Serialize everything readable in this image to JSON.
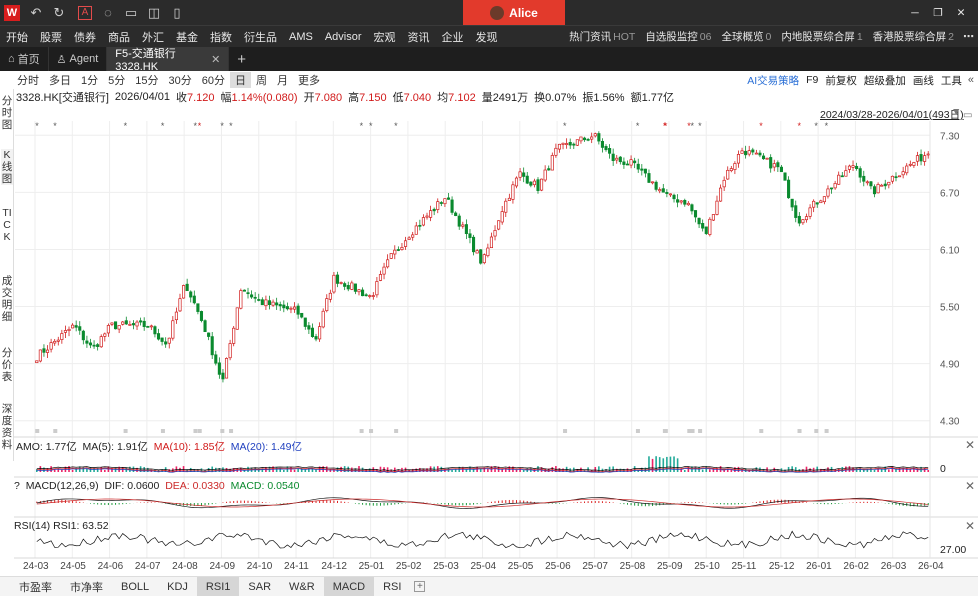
{
  "user": {
    "name": "Alice"
  },
  "menu": [
    "开始",
    "股票",
    "债券",
    "商品",
    "外汇",
    "基金",
    "指数",
    "衍生品",
    "AMS",
    "Advisor",
    "宏观",
    "资讯",
    "企业",
    "发现"
  ],
  "menu_right": [
    {
      "label": "热门资讯",
      "tag": "HOT"
    },
    {
      "label": "自选股监控",
      "tag": "06"
    },
    {
      "label": "全球概览",
      "tag": "0"
    },
    {
      "label": "内地股票综合屏",
      "tag": "1"
    },
    {
      "label": "香港股票综合屏",
      "tag": "2"
    }
  ],
  "tabs": {
    "home": "首页",
    "agent": "Agent",
    "active": "F5-交通银行 3328.HK",
    "add": "+"
  },
  "periods": [
    "分时",
    "多日",
    "1分",
    "5分",
    "15分",
    "30分",
    "60分",
    "日",
    "周",
    "月",
    "更多"
  ],
  "period_active": "日",
  "tools": [
    "AI交易策略",
    "F9",
    "前复权",
    "超级叠加",
    "画线",
    "工具"
  ],
  "quote": {
    "code": "3328.HK[交通银行]",
    "date": "2026/04/01",
    "close_label": "收",
    "close": "7.120",
    "chg_label": "幅",
    "chg": "1.14%(0.080)",
    "open_label": "开",
    "open": "7.080",
    "high_label": "高",
    "high": "7.150",
    "low_label": "低",
    "low": "7.040",
    "avg_label": "均",
    "avg": "7.102",
    "vol_label": "量",
    "vol": "2491万",
    "turn_label": "换",
    "turn": "0.07%",
    "amp_label": "振",
    "amp": "1.56%",
    "amt_label": "额",
    "amt": "1.77亿"
  },
  "left_nav": [
    "分时图",
    "K线图",
    "TICK",
    "成交明细",
    "分价表",
    "深度资料"
  ],
  "range_label": "2024/03/28-2026/04/01(493日)",
  "indicators": {
    "amo": {
      "l1": "AMO: 1.77亿",
      "l2": "MA(5): 1.91亿",
      "l3": "MA(10): 1.85亿",
      "l4": "MA(20): 1.49亿",
      "axis": "0"
    },
    "macd": {
      "l0": "?",
      "l1": "MACD(12,26,9)",
      "l2": "DIF: 0.0600",
      "l3": "DEA: 0.0330",
      "l4": "MACD: 0.0540"
    },
    "rsi": {
      "l1": "RSI(14)",
      "l2": "RSI1: 63.52",
      "axis": "27.00"
    }
  },
  "bottom_tabs": [
    "市盈率",
    "市净率",
    "BOLL",
    "KDJ",
    "RSI1",
    "SAR",
    "W&R",
    "MACD",
    "RSI"
  ],
  "bottom_active": [
    "RSI1",
    "MACD"
  ],
  "colors": {
    "up": "#d11a1a",
    "down": "#0a8a2e",
    "ma5": "#000000",
    "ma10": "#d11a1a",
    "ma20": "#1f3fbf",
    "macd_dea": "#cc2a2a"
  },
  "chart_data": {
    "type": "candlestick",
    "title": "",
    "x_ticks": [
      "24-03",
      "24-05",
      "24-06",
      "24-07",
      "24-08",
      "24-09",
      "24-10",
      "24-11",
      "24-12",
      "25-01",
      "25-02",
      "25-03",
      "25-04",
      "25-05",
      "25-06",
      "25-07",
      "25-08",
      "25-09",
      "25-10",
      "25-11",
      "25-12",
      "26-01",
      "26-02",
      "26-03",
      "26-04"
    ],
    "y_ticks": [
      4.3,
      4.9,
      5.5,
      6.1,
      6.7,
      7.3
    ],
    "ylim": [
      4.15,
      7.45
    ],
    "close_path": [
      {
        "x": "24-03",
        "y": 4.4
      },
      {
        "x": "24-04",
        "y": 4.65
      },
      {
        "x": "24-05",
        "y": 5.3
      },
      {
        "x": "24-05",
        "y": 5.05
      },
      {
        "x": "24-06",
        "y": 5.3
      },
      {
        "x": "24-07",
        "y": 5.3
      },
      {
        "x": "24-07",
        "y": 5.1
      },
      {
        "x": "24-08",
        "y": 5.75
      },
      {
        "x": "24-08",
        "y": 5.3
      },
      {
        "x": "24-09",
        "y": 4.7
      },
      {
        "x": "24-09",
        "y": 5.7
      },
      {
        "x": "24-10",
        "y": 5.55
      },
      {
        "x": "24-11",
        "y": 5.45
      },
      {
        "x": "24-11",
        "y": 5.15
      },
      {
        "x": "24-12",
        "y": 5.8
      },
      {
        "x": "25-01",
        "y": 5.6
      },
      {
        "x": "25-01",
        "y": 6.0
      },
      {
        "x": "25-02",
        "y": 6.25
      },
      {
        "x": "25-03",
        "y": 6.65
      },
      {
        "x": "25-04",
        "y": 5.95
      },
      {
        "x": "25-04",
        "y": 6.5
      },
      {
        "x": "25-05",
        "y": 6.9
      },
      {
        "x": "25-05",
        "y": 6.75
      },
      {
        "x": "25-06",
        "y": 7.15
      },
      {
        "x": "25-07",
        "y": 7.3
      },
      {
        "x": "25-07",
        "y": 7.05
      },
      {
        "x": "25-08",
        "y": 7.0
      },
      {
        "x": "25-09",
        "y": 6.65
      },
      {
        "x": "25-09",
        "y": 6.6
      },
      {
        "x": "25-10",
        "y": 6.25
      },
      {
        "x": "25-10",
        "y": 6.85
      },
      {
        "x": "25-11",
        "y": 7.15
      },
      {
        "x": "25-12",
        "y": 6.95
      },
      {
        "x": "25-12",
        "y": 6.4
      },
      {
        "x": "26-01",
        "y": 6.6
      },
      {
        "x": "26-02",
        "y": 7.0
      },
      {
        "x": "26-02",
        "y": 6.7
      },
      {
        "x": "26-03",
        "y": 6.85
      },
      {
        "x": "26-04",
        "y": 7.12
      }
    ]
  }
}
